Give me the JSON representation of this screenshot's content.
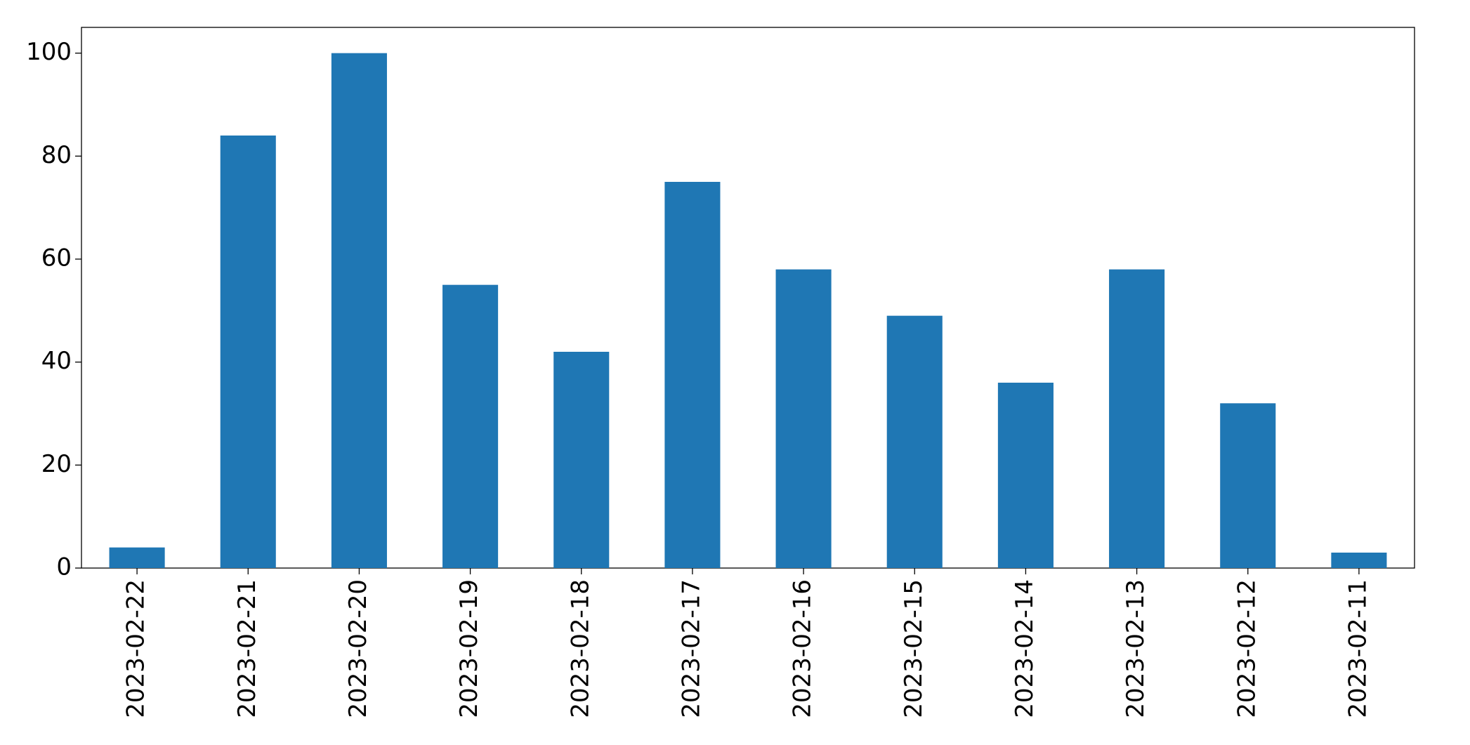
{
  "chart_data": {
    "type": "bar",
    "categories": [
      "2023-02-22",
      "2023-02-21",
      "2023-02-20",
      "2023-02-19",
      "2023-02-18",
      "2023-02-17",
      "2023-02-16",
      "2023-02-15",
      "2023-02-14",
      "2023-02-13",
      "2023-02-12",
      "2023-02-11"
    ],
    "values": [
      4,
      84,
      100,
      55,
      42,
      75,
      58,
      49,
      36,
      58,
      32,
      3
    ],
    "color": "#1f77b4",
    "ylim": [
      0,
      105
    ],
    "yticks": [
      0,
      20,
      40,
      60,
      80,
      100
    ],
    "grid": false
  }
}
